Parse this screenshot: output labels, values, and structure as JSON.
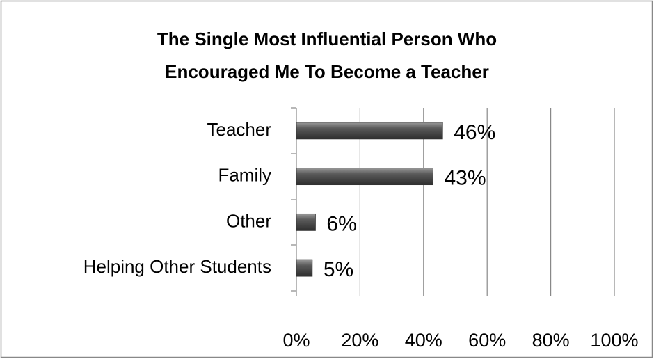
{
  "chart_data": {
    "type": "bar",
    "orientation": "horizontal",
    "title": [
      "The Single Most Influential Person Who",
      "Encouraged Me To Become a Teacher"
    ],
    "categories": [
      "Teacher",
      "Family",
      "Other",
      "Helping Other Students"
    ],
    "values": [
      46,
      43,
      6,
      5
    ],
    "value_labels": [
      "46%",
      "43%",
      "6%",
      "5%"
    ],
    "color": "#555555",
    "xlim": [
      0,
      100
    ],
    "xticks": [
      {
        "value": 0,
        "label": "0%"
      },
      {
        "value": 20,
        "label": "20%"
      },
      {
        "value": 40,
        "label": "40%"
      },
      {
        "value": 60,
        "label": "60%"
      },
      {
        "value": 80,
        "label": "80%"
      },
      {
        "value": 100,
        "label": "100%"
      }
    ],
    "grid": true
  }
}
